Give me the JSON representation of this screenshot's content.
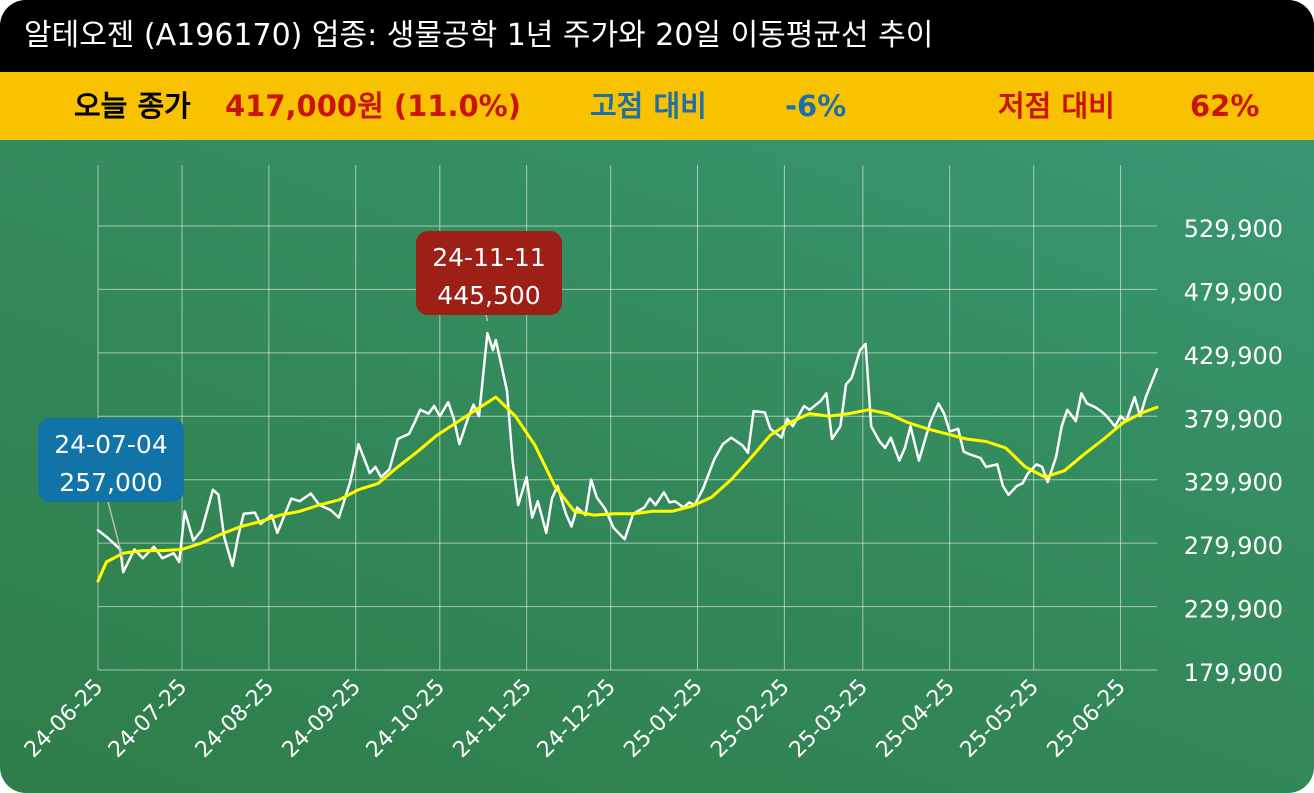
{
  "header": {
    "title": "알테오젠 (A196170) 업종: 생물공학 1년 주가와 20일 이동평균선 추이",
    "today_close_label": "오늘 종가",
    "today_close_value": "417,000원 (11.0%)",
    "vs_high_label": "고점 대비",
    "vs_high_value": "-6%",
    "vs_low_label": "저점 대비",
    "vs_low_value": "62%"
  },
  "colors": {
    "title_bg": "#000000",
    "info_bg": "#f9c200",
    "price_line": "#ffffff",
    "ma_line": "#ffff00",
    "low_callout": "#1173a8",
    "high_callout": "#9d1f16",
    "red_text": "#c9140c",
    "blue_text": "#1d6fa8"
  },
  "chart_data": {
    "type": "line",
    "x_tick_labels": [
      "24-06-25",
      "24-07-25",
      "24-08-25",
      "24-09-25",
      "24-10-25",
      "24-11-25",
      "24-12-25",
      "25-01-25",
      "25-02-25",
      "25-03-25",
      "25-04-25",
      "25-05-25",
      "25-06-25"
    ],
    "y_tick_labels": [
      "529,900",
      "479,900",
      "429,900",
      "379,900",
      "329,900",
      "279,900",
      "229,900",
      "179,900"
    ],
    "ylim": [
      179900,
      529900
    ],
    "xlim": [
      "2024-06-25",
      "2025-07-08"
    ],
    "grid": true,
    "series": [
      {
        "name": "price",
        "points": [
          [
            "2024-06-25",
            290000
          ],
          [
            "2024-06-28",
            285000
          ],
          [
            "2024-07-03",
            275000
          ],
          [
            "2024-07-04",
            257000
          ],
          [
            "2024-07-08",
            275000
          ],
          [
            "2024-07-11",
            268000
          ],
          [
            "2024-07-15",
            277000
          ],
          [
            "2024-07-18",
            268000
          ],
          [
            "2024-07-22",
            272000
          ],
          [
            "2024-07-24",
            265000
          ],
          [
            "2024-07-26",
            305000
          ],
          [
            "2024-07-29",
            282000
          ],
          [
            "2024-08-01",
            290000
          ],
          [
            "2024-08-05",
            322000
          ],
          [
            "2024-08-07",
            318000
          ],
          [
            "2024-08-09",
            285000
          ],
          [
            "2024-08-12",
            262000
          ],
          [
            "2024-08-14",
            285000
          ],
          [
            "2024-08-16",
            303000
          ],
          [
            "2024-08-20",
            304000
          ],
          [
            "2024-08-22",
            295000
          ],
          [
            "2024-08-26",
            302000
          ],
          [
            "2024-08-28",
            288000
          ],
          [
            "2024-09-02",
            315000
          ],
          [
            "2024-09-05",
            313000
          ],
          [
            "2024-09-09",
            319000
          ],
          [
            "2024-09-12",
            310000
          ],
          [
            "2024-09-16",
            306000
          ],
          [
            "2024-09-19",
            300000
          ],
          [
            "2024-09-23",
            328000
          ],
          [
            "2024-09-26",
            358000
          ],
          [
            "2024-09-30",
            335000
          ],
          [
            "2024-10-02",
            340000
          ],
          [
            "2024-10-04",
            332000
          ],
          [
            "2024-10-07",
            338000
          ],
          [
            "2024-10-10",
            362000
          ],
          [
            "2024-10-14",
            366000
          ],
          [
            "2024-10-16",
            375000
          ],
          [
            "2024-10-18",
            385000
          ],
          [
            "2024-10-21",
            382000
          ],
          [
            "2024-10-23",
            388000
          ],
          [
            "2024-10-25",
            380000
          ],
          [
            "2024-10-28",
            391000
          ],
          [
            "2024-10-30",
            378000
          ],
          [
            "2024-11-01",
            358000
          ],
          [
            "2024-11-04",
            378000
          ],
          [
            "2024-11-06",
            389000
          ],
          [
            "2024-11-08",
            380000
          ],
          [
            "2024-11-11",
            445500
          ],
          [
            "2024-11-13",
            432000
          ],
          [
            "2024-11-14",
            440000
          ],
          [
            "2024-11-18",
            400000
          ],
          [
            "2024-11-20",
            345000
          ],
          [
            "2024-11-22",
            310000
          ],
          [
            "2024-11-25",
            332000
          ],
          [
            "2024-11-27",
            300000
          ],
          [
            "2024-11-29",
            313000
          ],
          [
            "2024-12-02",
            288000
          ],
          [
            "2024-12-04",
            315000
          ],
          [
            "2024-12-06",
            325000
          ],
          [
            "2024-12-09",
            303000
          ],
          [
            "2024-12-11",
            293000
          ],
          [
            "2024-12-13",
            308000
          ],
          [
            "2024-12-16",
            302000
          ],
          [
            "2024-12-18",
            330000
          ],
          [
            "2024-12-20",
            316000
          ],
          [
            "2024-12-23",
            307000
          ],
          [
            "2024-12-26",
            292000
          ],
          [
            "2024-12-30",
            283000
          ],
          [
            "2025-01-02",
            303000
          ],
          [
            "2025-01-06",
            308000
          ],
          [
            "2025-01-08",
            315000
          ],
          [
            "2025-01-10",
            310000
          ],
          [
            "2025-01-13",
            320000
          ],
          [
            "2025-01-15",
            312000
          ],
          [
            "2025-01-17",
            313000
          ],
          [
            "2025-01-20",
            308000
          ],
          [
            "2025-01-22",
            312000
          ],
          [
            "2025-01-24",
            310000
          ],
          [
            "2025-01-27",
            323000
          ],
          [
            "2025-01-31",
            346000
          ],
          [
            "2025-02-03",
            358000
          ],
          [
            "2025-02-06",
            363000
          ],
          [
            "2025-02-10",
            357000
          ],
          [
            "2025-02-12",
            351000
          ],
          [
            "2025-02-14",
            384000
          ],
          [
            "2025-02-18",
            383000
          ],
          [
            "2025-02-20",
            370000
          ],
          [
            "2025-02-24",
            363000
          ],
          [
            "2025-02-26",
            378000
          ],
          [
            "2025-02-28",
            372000
          ],
          [
            "2025-03-04",
            388000
          ],
          [
            "2025-03-06",
            385000
          ],
          [
            "2025-03-10",
            392000
          ],
          [
            "2025-03-12",
            398000
          ],
          [
            "2025-03-14",
            362000
          ],
          [
            "2025-03-17",
            372000
          ],
          [
            "2025-03-19",
            405000
          ],
          [
            "2025-03-21",
            410000
          ],
          [
            "2025-03-24",
            432000
          ],
          [
            "2025-03-26",
            437000
          ],
          [
            "2025-03-28",
            372000
          ],
          [
            "2025-03-31",
            360000
          ],
          [
            "2025-04-02",
            355000
          ],
          [
            "2025-04-04",
            363000
          ],
          [
            "2025-04-07",
            345000
          ],
          [
            "2025-04-09",
            355000
          ],
          [
            "2025-04-11",
            372000
          ],
          [
            "2025-04-14",
            345000
          ],
          [
            "2025-04-16",
            360000
          ],
          [
            "2025-04-18",
            375000
          ],
          [
            "2025-04-21",
            390000
          ],
          [
            "2025-04-23",
            382000
          ],
          [
            "2025-04-25",
            368000
          ],
          [
            "2025-04-28",
            370000
          ],
          [
            "2025-04-30",
            352000
          ],
          [
            "2025-05-02",
            350000
          ],
          [
            "2025-05-06",
            347000
          ],
          [
            "2025-05-08",
            340000
          ],
          [
            "2025-05-12",
            342000
          ],
          [
            "2025-05-14",
            325000
          ],
          [
            "2025-05-16",
            318000
          ],
          [
            "2025-05-19",
            325000
          ],
          [
            "2025-05-21",
            327000
          ],
          [
            "2025-05-23",
            335000
          ],
          [
            "2025-05-26",
            342000
          ],
          [
            "2025-05-28",
            340000
          ],
          [
            "2025-05-30",
            328000
          ],
          [
            "2025-06-02",
            348000
          ],
          [
            "2025-06-04",
            372000
          ],
          [
            "2025-06-06",
            385000
          ],
          [
            "2025-06-09",
            376000
          ],
          [
            "2025-06-11",
            398000
          ],
          [
            "2025-06-13",
            390000
          ],
          [
            "2025-06-16",
            387000
          ],
          [
            "2025-06-18",
            384000
          ],
          [
            "2025-06-20",
            380000
          ],
          [
            "2025-06-23",
            372000
          ],
          [
            "2025-06-25",
            380000
          ],
          [
            "2025-06-27",
            376000
          ],
          [
            "2025-06-30",
            395000
          ],
          [
            "2025-07-02",
            380000
          ],
          [
            "2025-07-04",
            395000
          ],
          [
            "2025-07-08",
            417000
          ]
        ]
      },
      {
        "name": "ma20",
        "points": [
          [
            "2024-06-25",
            250000
          ],
          [
            "2024-06-28",
            265000
          ],
          [
            "2024-07-04",
            272000
          ],
          [
            "2024-07-11",
            274000
          ],
          [
            "2024-07-18",
            274000
          ],
          [
            "2024-07-25",
            275000
          ],
          [
            "2024-08-01",
            280000
          ],
          [
            "2024-08-08",
            287000
          ],
          [
            "2024-08-15",
            293000
          ],
          [
            "2024-08-22",
            297000
          ],
          [
            "2024-08-29",
            302000
          ],
          [
            "2024-09-05",
            305000
          ],
          [
            "2024-09-12",
            310000
          ],
          [
            "2024-09-19",
            314000
          ],
          [
            "2024-09-26",
            322000
          ],
          [
            "2024-10-03",
            327000
          ],
          [
            "2024-10-10",
            340000
          ],
          [
            "2024-10-17",
            352000
          ],
          [
            "2024-10-24",
            365000
          ],
          [
            "2024-10-31",
            375000
          ],
          [
            "2024-11-07",
            385000
          ],
          [
            "2024-11-14",
            395000
          ],
          [
            "2024-11-21",
            380000
          ],
          [
            "2024-11-28",
            357000
          ],
          [
            "2024-12-05",
            325000
          ],
          [
            "2024-12-12",
            305000
          ],
          [
            "2024-12-19",
            302000
          ],
          [
            "2024-12-26",
            303000
          ],
          [
            "2025-01-02",
            303000
          ],
          [
            "2025-01-09",
            305000
          ],
          [
            "2025-01-16",
            305000
          ],
          [
            "2025-01-23",
            309000
          ],
          [
            "2025-01-30",
            316000
          ],
          [
            "2025-02-06",
            330000
          ],
          [
            "2025-02-13",
            347000
          ],
          [
            "2025-02-20",
            365000
          ],
          [
            "2025-02-27",
            375000
          ],
          [
            "2025-03-06",
            382000
          ],
          [
            "2025-03-13",
            380000
          ],
          [
            "2025-03-20",
            382000
          ],
          [
            "2025-03-27",
            385000
          ],
          [
            "2025-04-03",
            382000
          ],
          [
            "2025-04-10",
            375000
          ],
          [
            "2025-04-17",
            370000
          ],
          [
            "2025-04-24",
            366000
          ],
          [
            "2025-05-01",
            362000
          ],
          [
            "2025-05-08",
            360000
          ],
          [
            "2025-05-15",
            355000
          ],
          [
            "2025-05-22",
            340000
          ],
          [
            "2025-05-29",
            332000
          ],
          [
            "2025-06-05",
            337000
          ],
          [
            "2025-06-12",
            350000
          ],
          [
            "2025-06-19",
            362000
          ],
          [
            "2025-06-26",
            375000
          ],
          [
            "2025-07-03",
            383000
          ],
          [
            "2025-07-08",
            387000
          ]
        ]
      }
    ],
    "annotations": [
      {
        "date_label": "24-07-04",
        "value_label": "257,000",
        "x": "2024-07-04",
        "y": 257000,
        "kind": "low"
      },
      {
        "date_label": "24-11-11",
        "value_label": "445,500",
        "x": "2024-11-11",
        "y": 445500,
        "kind": "high"
      }
    ]
  }
}
